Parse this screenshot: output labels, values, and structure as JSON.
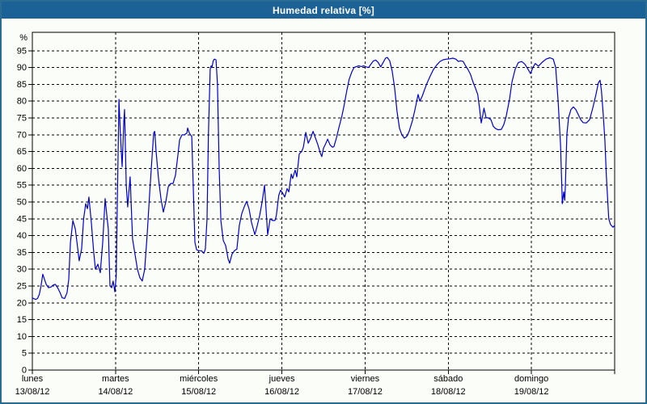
{
  "window": {
    "title": "Humedad relativa [%]"
  },
  "colors": {
    "titlebar_bg": "#1d6296",
    "titlebar_text": "#ffffff",
    "window_border": "#2a6b91",
    "window_bg": "#fbfdf8",
    "line": "#0000cc",
    "grid": "#000000",
    "text": "#000000"
  },
  "chart_data": {
    "type": "line",
    "title": "Humedad relativa [%]",
    "ylabel": "%",
    "ylim": [
      0,
      100
    ],
    "ytick_labels": [
      "0",
      "5",
      "10",
      "15",
      "20",
      "25",
      "30",
      "35",
      "40",
      "45",
      "50",
      "55",
      "60",
      "65",
      "70",
      "75",
      "80",
      "85",
      "90",
      "95"
    ],
    "grid": "dashed",
    "legend": "none",
    "x_unit": "hours from lunes 13/08/12 00:00",
    "xlim": [
      0,
      168
    ],
    "days": [
      {
        "name": "lunes",
        "date": "13/08/12"
      },
      {
        "name": "martes",
        "date": "14/08/12"
      },
      {
        "name": "miércoles",
        "date": "15/08/12"
      },
      {
        "name": "jueves",
        "date": "16/08/12"
      },
      {
        "name": "viernes",
        "date": "17/08/12"
      },
      {
        "name": "sábado",
        "date": "18/08/12"
      },
      {
        "name": "domingo",
        "date": "19/08/12"
      }
    ],
    "series": [
      {
        "name": "Humedad relativa",
        "color": "#0000cc",
        "points": [
          [
            0,
            21.5
          ],
          [
            0.5,
            21.2
          ],
          [
            1,
            21
          ],
          [
            1.5,
            21.3
          ],
          [
            2,
            22.5
          ],
          [
            2.5,
            25
          ],
          [
            3,
            28.5
          ],
          [
            3.5,
            27
          ],
          [
            4,
            25.5
          ],
          [
            4.7,
            24.5
          ],
          [
            5.4,
            24.7
          ],
          [
            6,
            25.3
          ],
          [
            6.6,
            25.5
          ],
          [
            7.3,
            24.5
          ],
          [
            8,
            23
          ],
          [
            8.6,
            21.5
          ],
          [
            9.3,
            21.3
          ],
          [
            10,
            23
          ],
          [
            10.5,
            27
          ],
          [
            11,
            38
          ],
          [
            11.7,
            44.5
          ],
          [
            12.4,
            42
          ],
          [
            13,
            37
          ],
          [
            13.5,
            32.5
          ],
          [
            14.2,
            36
          ],
          [
            14.8,
            45
          ],
          [
            15.4,
            49.5
          ],
          [
            15.9,
            48
          ],
          [
            16.3,
            51.5
          ],
          [
            17,
            44
          ],
          [
            17.7,
            35
          ],
          [
            18.2,
            30
          ],
          [
            18.9,
            31.5
          ],
          [
            19.6,
            29
          ],
          [
            20.3,
            38
          ],
          [
            21,
            51
          ],
          [
            21.5,
            46
          ],
          [
            21.9,
            42
          ],
          [
            22.4,
            25
          ],
          [
            22.9,
            24.5
          ],
          [
            23.3,
            26.5
          ],
          [
            23.8,
            23.3
          ],
          [
            24.2,
            28
          ],
          [
            24.6,
            55
          ],
          [
            25,
            80.5
          ],
          [
            25.4,
            70
          ],
          [
            25.9,
            60.5
          ],
          [
            26.4,
            74
          ],
          [
            26.6,
            77.5
          ],
          [
            27.1,
            55
          ],
          [
            27.5,
            48.5
          ],
          [
            28.2,
            57.5
          ],
          [
            28.9,
            39
          ],
          [
            29.6,
            34.5
          ],
          [
            30.3,
            30
          ],
          [
            31,
            27.5
          ],
          [
            31.7,
            26.5
          ],
          [
            32.4,
            30
          ],
          [
            33.1,
            40
          ],
          [
            33.8,
            52
          ],
          [
            34.5,
            63
          ],
          [
            35,
            70.5
          ],
          [
            35.3,
            71
          ],
          [
            35.7,
            65
          ],
          [
            36.4,
            57
          ],
          [
            37.1,
            51
          ],
          [
            37.8,
            47
          ],
          [
            38.5,
            50
          ],
          [
            39.2,
            54.5
          ],
          [
            39.9,
            55.5
          ],
          [
            40.6,
            55.5
          ],
          [
            41.3,
            58
          ],
          [
            42,
            64
          ],
          [
            42.5,
            68.5
          ],
          [
            43.2,
            70
          ],
          [
            43.9,
            70
          ],
          [
            44.6,
            70.5
          ],
          [
            44.8,
            72
          ],
          [
            45.3,
            70.5
          ],
          [
            46,
            69.5
          ],
          [
            46.4,
            55
          ],
          [
            46.9,
            38
          ],
          [
            47.4,
            35.8
          ],
          [
            48,
            35.5
          ],
          [
            48.8,
            35.5
          ],
          [
            49.5,
            34.7
          ],
          [
            49.9,
            36
          ],
          [
            50.4,
            45
          ],
          [
            50.8,
            70
          ],
          [
            51.3,
            89.5
          ],
          [
            51.6,
            90.5
          ],
          [
            51.8,
            90
          ],
          [
            52.2,
            92
          ],
          [
            52.5,
            92.5
          ],
          [
            53,
            92.3
          ],
          [
            53.4,
            85
          ],
          [
            53.9,
            60
          ],
          [
            54.4,
            44.5
          ],
          [
            55.1,
            38.5
          ],
          [
            55.8,
            37
          ],
          [
            56.5,
            33
          ],
          [
            56.9,
            31.8
          ],
          [
            57.6,
            34.5
          ],
          [
            58.3,
            35.5
          ],
          [
            59,
            36
          ],
          [
            59.7,
            43
          ],
          [
            60.4,
            46.5
          ],
          [
            61.1,
            48.5
          ],
          [
            61.8,
            50.2
          ],
          [
            62.5,
            48
          ],
          [
            63.2,
            44
          ],
          [
            64.2,
            40.3
          ],
          [
            64.9,
            43
          ],
          [
            65.6,
            46
          ],
          [
            66.3,
            50
          ],
          [
            67,
            55
          ],
          [
            67.4,
            48
          ],
          [
            67.9,
            40.3
          ],
          [
            68.6,
            45
          ],
          [
            69.3,
            44.5
          ],
          [
            70,
            44.5
          ],
          [
            70.4,
            46
          ],
          [
            71.1,
            52
          ],
          [
            71.6,
            53.5
          ],
          [
            72.3,
            52.5
          ],
          [
            72.8,
            51.5
          ],
          [
            73.5,
            54
          ],
          [
            74,
            53
          ],
          [
            74.7,
            58.3
          ],
          [
            75.1,
            57
          ],
          [
            75.8,
            59.5
          ],
          [
            76.3,
            57.5
          ],
          [
            77,
            64.3
          ],
          [
            77.7,
            65
          ],
          [
            78.2,
            66.3
          ],
          [
            78.9,
            70.7
          ],
          [
            79.6,
            67.5
          ],
          [
            80.3,
            69
          ],
          [
            81,
            71
          ],
          [
            81.7,
            69
          ],
          [
            82.4,
            67
          ],
          [
            83.1,
            64.5
          ],
          [
            83.5,
            63.5
          ],
          [
            84,
            66
          ],
          [
            84.7,
            67.5
          ],
          [
            85.2,
            68.7
          ],
          [
            85.9,
            67
          ],
          [
            86.6,
            66.3
          ],
          [
            87,
            66.5
          ],
          [
            87.7,
            69
          ],
          [
            88.4,
            72
          ],
          [
            89.3,
            75.5
          ],
          [
            90,
            79
          ],
          [
            90.7,
            83
          ],
          [
            91.4,
            86.5
          ],
          [
            92.1,
            88.5
          ],
          [
            92.8,
            90
          ],
          [
            93.5,
            90.3
          ],
          [
            94.2,
            90.5
          ],
          [
            94.9,
            90.3
          ],
          [
            95.6,
            90.5
          ],
          [
            96.3,
            90.2
          ],
          [
            97,
            90
          ],
          [
            97.7,
            91
          ],
          [
            98.4,
            92
          ],
          [
            99.1,
            92.2
          ],
          [
            99.8,
            91.5
          ],
          [
            100.5,
            90.2
          ],
          [
            101.2,
            91.5
          ],
          [
            101.9,
            92.8
          ],
          [
            102.4,
            93
          ],
          [
            103.1,
            92
          ],
          [
            103.8,
            89
          ],
          [
            104.5,
            84
          ],
          [
            105.2,
            77
          ],
          [
            105.9,
            72
          ],
          [
            106.6,
            70
          ],
          [
            107.3,
            69
          ],
          [
            108,
            69.5
          ],
          [
            108.7,
            71
          ],
          [
            109.7,
            74.3
          ],
          [
            110.4,
            77.5
          ],
          [
            111.3,
            82
          ],
          [
            111.8,
            80
          ],
          [
            112.5,
            81.5
          ],
          [
            113.2,
            83.5
          ],
          [
            113.9,
            85.4
          ],
          [
            114.8,
            87.5
          ],
          [
            115.7,
            89.4
          ],
          [
            116.7,
            90.8
          ],
          [
            117.6,
            91.8
          ],
          [
            118.5,
            92.3
          ],
          [
            119.5,
            92.5
          ],
          [
            120.4,
            92.6
          ],
          [
            121.3,
            92.8
          ],
          [
            122.2,
            92.5
          ],
          [
            122.9,
            91.8
          ],
          [
            123.6,
            92
          ],
          [
            124.3,
            91.8
          ],
          [
            125,
            90.5
          ],
          [
            125.7,
            89.4
          ],
          [
            126.4,
            88
          ],
          [
            127.1,
            85.8
          ],
          [
            127.8,
            84
          ],
          [
            128.5,
            82
          ],
          [
            129,
            78
          ],
          [
            129.5,
            73.5
          ],
          [
            130,
            76
          ],
          [
            130.3,
            77.9
          ],
          [
            130.9,
            75.1
          ],
          [
            131.6,
            75
          ],
          [
            132.3,
            74.5
          ],
          [
            133,
            72.5
          ],
          [
            133.7,
            71.8
          ],
          [
            134.4,
            71.5
          ],
          [
            135.3,
            71.6
          ],
          [
            136,
            73
          ],
          [
            136.7,
            75.5
          ],
          [
            137.7,
            80.7
          ],
          [
            138.4,
            85.8
          ],
          [
            139.3,
            89.5
          ],
          [
            140.2,
            91.5
          ],
          [
            141.2,
            91.8
          ],
          [
            142.1,
            91
          ],
          [
            143,
            89.5
          ],
          [
            143.7,
            88.2
          ],
          [
            144.4,
            90
          ],
          [
            145.1,
            91.2
          ],
          [
            146,
            90.4
          ],
          [
            147,
            91.5
          ],
          [
            148.2,
            92.5
          ],
          [
            149.3,
            92.9
          ],
          [
            150.3,
            92.5
          ],
          [
            151,
            90
          ],
          [
            151.7,
            80
          ],
          [
            152.4,
            67
          ],
          [
            152.9,
            49.5
          ],
          [
            153.3,
            53
          ],
          [
            153.6,
            50.5
          ],
          [
            153.8,
            55
          ],
          [
            154.2,
            70
          ],
          [
            154.7,
            75.1
          ],
          [
            155.4,
            77.5
          ],
          [
            156.1,
            78.3
          ],
          [
            156.8,
            77.5
          ],
          [
            157.5,
            76
          ],
          [
            158.2,
            74.5
          ],
          [
            158.9,
            73.6
          ],
          [
            159.8,
            73.5
          ],
          [
            160.8,
            74.5
          ],
          [
            161.7,
            78
          ],
          [
            162.6,
            82
          ],
          [
            163.3,
            85.5
          ],
          [
            163.8,
            86.2
          ],
          [
            164.2,
            83
          ],
          [
            164.7,
            76
          ],
          [
            165.2,
            68
          ],
          [
            165.6,
            58
          ],
          [
            166.3,
            45
          ],
          [
            166.8,
            43.3
          ],
          [
            167.5,
            42.5
          ],
          [
            168,
            43
          ]
        ]
      }
    ]
  }
}
